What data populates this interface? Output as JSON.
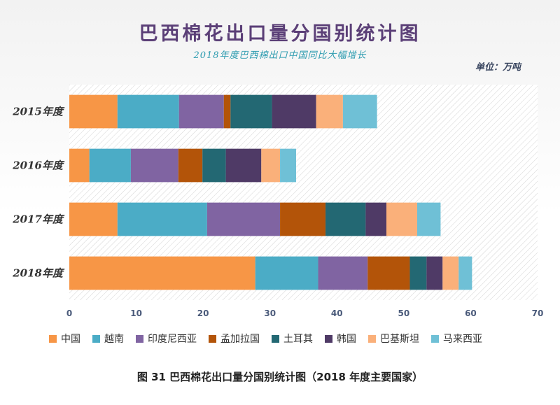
{
  "title": "巴西棉花出口量分国别统计图",
  "subtitle": "2018年度巴西棉出口中国同比大幅增长",
  "unit": "单位：万吨",
  "caption": "图 31    巴西棉花出口量分国别统计图（2018 年度主要国家）",
  "chart_data": {
    "type": "bar",
    "orientation": "horizontal",
    "stacked": true,
    "categories": [
      "2015年度",
      "2016年度",
      "2017年度",
      "2018年度"
    ],
    "xlim": [
      0,
      70
    ],
    "xticks": [
      0,
      10,
      20,
      30,
      40,
      50,
      60,
      70
    ],
    "legend_position": "bottom",
    "series": [
      {
        "name": "中国",
        "color": "#f79646",
        "values": [
          7.2,
          3.0,
          7.2,
          27.8
        ]
      },
      {
        "name": "越南",
        "color": "#4bacc6",
        "values": [
          9.2,
          6.2,
          13.4,
          9.4
        ]
      },
      {
        "name": "印度尼西亚",
        "color": "#8064a2",
        "values": [
          6.7,
          7.1,
          10.9,
          7.4
        ]
      },
      {
        "name": "孟加拉国",
        "color": "#b35409",
        "values": [
          1.0,
          3.6,
          6.8,
          6.3
        ]
      },
      {
        "name": "土耳其",
        "color": "#236873",
        "values": [
          6.2,
          3.5,
          6.0,
          2.5
        ]
      },
      {
        "name": "韩国",
        "color": "#4f3a66",
        "values": [
          6.6,
          5.3,
          3.1,
          2.4
        ]
      },
      {
        "name": "巴基斯坦",
        "color": "#fab07a",
        "values": [
          4.0,
          2.8,
          4.6,
          2.4
        ]
      },
      {
        "name": "马来西亚",
        "color": "#6fc0d6",
        "values": [
          5.1,
          2.4,
          3.5,
          2.0
        ]
      }
    ]
  }
}
